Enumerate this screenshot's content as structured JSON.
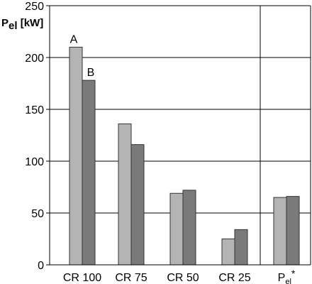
{
  "chart_data": {
    "type": "bar",
    "ylabel_main": "P",
    "ylabel_sub": "el",
    "ylabel_unit": " [kW]",
    "ylim": [
      0,
      250
    ],
    "yticks": [
      0,
      50,
      100,
      150,
      200,
      250
    ],
    "grid": true,
    "categories": [
      {
        "main": "CR 100",
        "sub": "",
        "sup": ""
      },
      {
        "main": "CR 75",
        "sub": "",
        "sup": ""
      },
      {
        "main": "CR 50",
        "sub": "",
        "sup": ""
      },
      {
        "main": "CR 25",
        "sub": "",
        "sup": ""
      },
      {
        "main": "P",
        "sub": "el",
        "sup": "*"
      }
    ],
    "series": [
      {
        "name": "A",
        "color": "#b4b4b4",
        "values": [
          210,
          136,
          69,
          25,
          65
        ]
      },
      {
        "name": "B",
        "color": "#7a7a7a",
        "values": [
          178,
          116,
          72,
          34,
          66
        ]
      }
    ],
    "annotations": [
      {
        "text": "A",
        "category": 0,
        "series": 0
      },
      {
        "text": "B",
        "category": 0,
        "series": 1
      }
    ]
  }
}
